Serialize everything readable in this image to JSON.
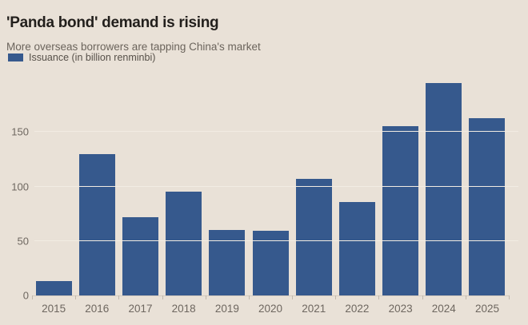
{
  "header": {
    "title": "'Panda bond' demand is rising",
    "subtitle": "More overseas borrowers are tapping China's market",
    "legend_label": "Issuance (in billion renminbi)"
  },
  "chart_data": {
    "type": "bar",
    "title": "'Panda bond' demand is rising",
    "subtitle": "More overseas borrowers are tapping China's market",
    "legend": [
      "Issuance (in billion renminbi)"
    ],
    "legend_position": "top-left",
    "categories": [
      "2015",
      "2016",
      "2017",
      "2018",
      "2019",
      "2020",
      "2021",
      "2022",
      "2023",
      "2024",
      "2025"
    ],
    "values": [
      13,
      130,
      72,
      95,
      60,
      59,
      107,
      86,
      155,
      195,
      163
    ],
    "xlabel": "",
    "ylabel": "",
    "ylim": [
      0,
      200
    ],
    "yticks": [
      0,
      50,
      100,
      150
    ],
    "grid": "horizontal",
    "bar_color": "#36598d"
  },
  "colors": {
    "background": "#e9e1d7",
    "bar": "#36598d",
    "title_text": "#221f1c",
    "subtitle_text": "#6b645c",
    "legend_text": "#565049",
    "axis_text": "#6e6760",
    "gridline": "#f2ece3",
    "baseline": "#d5ccc0",
    "tick_mark": "#c2b8ac"
  }
}
